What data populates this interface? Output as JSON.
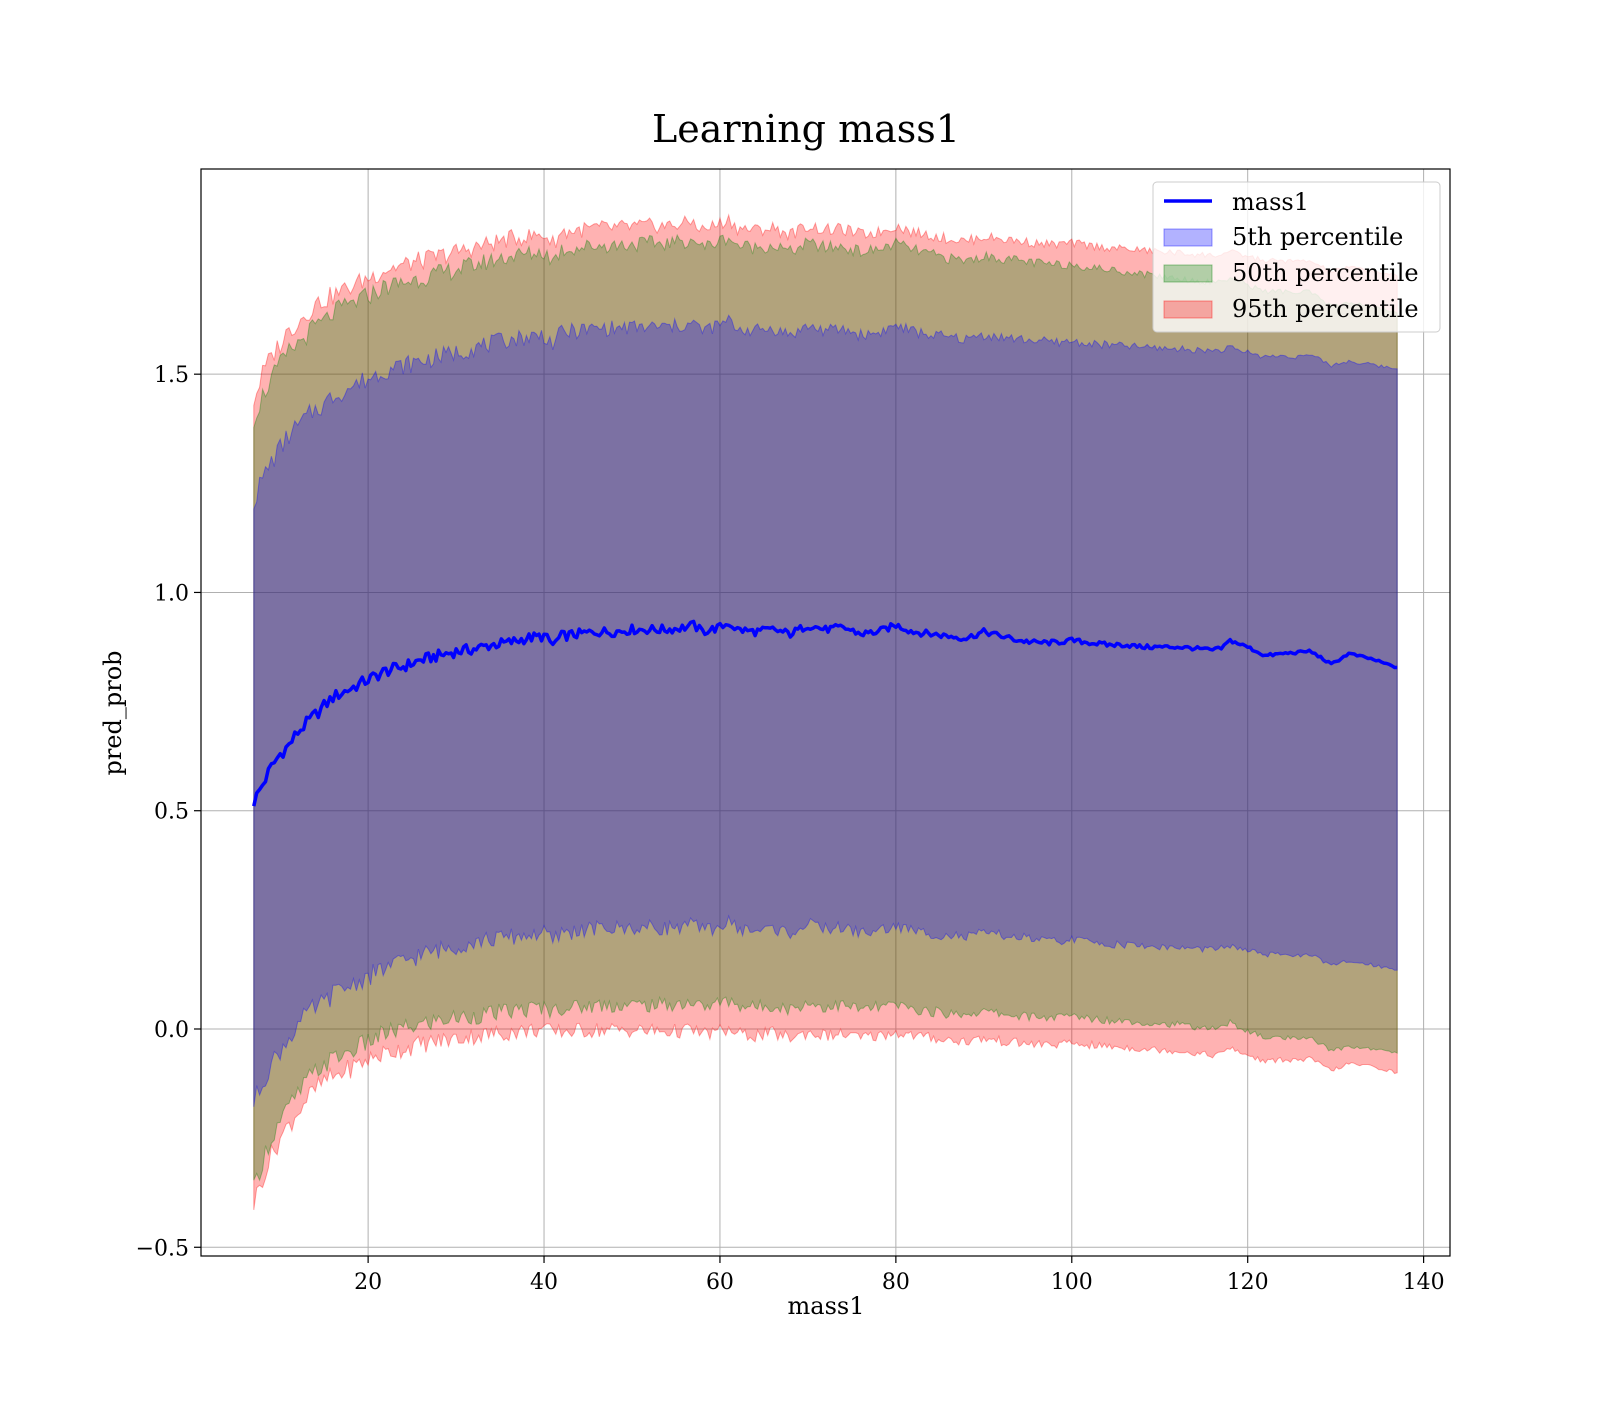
{
  "chart_data": {
    "type": "area",
    "title": "Learning mass1",
    "xlabel": "mass1",
    "ylabel": "pred_prob",
    "xlim": [
      1,
      143
    ],
    "ylim": [
      -0.52,
      1.97
    ],
    "x_ticks": [
      20,
      40,
      60,
      80,
      100,
      120,
      140
    ],
    "x_tick_labels": [
      "20",
      "40",
      "60",
      "80",
      "100",
      "120",
      "140"
    ],
    "y_ticks": [
      -0.5,
      0.0,
      0.5,
      1.0,
      1.5
    ],
    "y_tick_labels": [
      "−0.5",
      "0.0",
      "0.5",
      "1.0",
      "1.5"
    ],
    "grid": true,
    "legend_position": "top-right",
    "legend": [
      {
        "label": "mass1",
        "kind": "line"
      },
      {
        "label": "5th percentile",
        "kind": "patch"
      },
      {
        "label": "50th percentile",
        "kind": "patch"
      },
      {
        "label": "95th percentile",
        "kind": "patch"
      }
    ],
    "colors": {
      "line": "#0000ff",
      "band_5th": "#0000ff",
      "band_50th": "#008000",
      "band_95th": "#ff0000",
      "grid": "#b0b0b0"
    },
    "x": [
      7,
      8,
      9,
      10,
      11,
      12,
      13,
      14,
      15,
      16,
      17,
      18,
      19,
      20,
      22,
      24,
      26,
      28,
      30,
      32,
      34,
      36,
      38,
      40,
      41,
      42,
      44,
      46,
      48,
      50,
      52,
      54,
      56,
      57,
      58,
      60,
      61,
      62,
      64,
      66,
      68,
      70,
      72,
      74,
      76,
      78,
      80,
      82,
      84,
      86,
      88,
      90,
      92,
      94,
      96,
      98,
      100,
      102,
      104,
      106,
      108,
      110,
      112,
      114,
      116,
      117,
      118,
      120,
      122,
      124,
      126,
      127,
      128,
      129.5,
      131.5,
      134,
      137
    ],
    "series": [
      {
        "name": "mass1",
        "values": [
          0.52,
          0.56,
          0.6,
          0.63,
          0.65,
          0.68,
          0.7,
          0.72,
          0.74,
          0.76,
          0.77,
          0.78,
          0.79,
          0.8,
          0.82,
          0.83,
          0.845,
          0.855,
          0.865,
          0.87,
          0.88,
          0.885,
          0.895,
          0.9,
          0.88,
          0.9,
          0.905,
          0.91,
          0.91,
          0.915,
          0.915,
          0.915,
          0.92,
          0.925,
          0.91,
          0.92,
          0.93,
          0.915,
          0.91,
          0.915,
          0.905,
          0.925,
          0.915,
          0.92,
          0.905,
          0.91,
          0.925,
          0.91,
          0.905,
          0.9,
          0.895,
          0.91,
          0.9,
          0.89,
          0.885,
          0.885,
          0.89,
          0.885,
          0.88,
          0.88,
          0.875,
          0.875,
          0.875,
          0.872,
          0.868,
          0.872,
          0.89,
          0.875,
          0.855,
          0.86,
          0.863,
          0.866,
          0.855,
          0.835,
          0.86,
          0.848,
          0.828
        ]
      },
      {
        "name": "5th percentile",
        "values": [
          -0.17,
          -0.12,
          -0.08,
          -0.05,
          -0.02,
          0.01,
          0.03,
          0.05,
          0.06,
          0.08,
          0.09,
          0.1,
          0.11,
          0.12,
          0.14,
          0.155,
          0.17,
          0.18,
          0.19,
          0.2,
          0.205,
          0.21,
          0.215,
          0.22,
          0.2,
          0.22,
          0.225,
          0.23,
          0.23,
          0.232,
          0.232,
          0.232,
          0.235,
          0.24,
          0.225,
          0.235,
          0.245,
          0.23,
          0.225,
          0.23,
          0.22,
          0.24,
          0.23,
          0.232,
          0.22,
          0.225,
          0.235,
          0.225,
          0.218,
          0.215,
          0.21,
          0.22,
          0.215,
          0.21,
          0.205,
          0.2,
          0.205,
          0.2,
          0.195,
          0.193,
          0.19,
          0.188,
          0.186,
          0.184,
          0.182,
          0.185,
          0.19,
          0.18,
          0.17,
          0.17,
          0.17,
          0.172,
          0.16,
          0.145,
          0.155,
          0.148,
          0.135
        ]
      },
      {
        "name": "50th percentile",
        "values": [
          -0.37,
          -0.3,
          -0.25,
          -0.21,
          -0.18,
          -0.15,
          -0.12,
          -0.1,
          -0.08,
          -0.07,
          -0.06,
          -0.05,
          -0.04,
          -0.03,
          -0.01,
          0.0,
          0.01,
          0.02,
          0.025,
          0.03,
          0.035,
          0.04,
          0.045,
          0.05,
          0.04,
          0.05,
          0.05,
          0.055,
          0.055,
          0.055,
          0.055,
          0.055,
          0.06,
          0.06,
          0.05,
          0.06,
          0.065,
          0.055,
          0.05,
          0.055,
          0.045,
          0.06,
          0.05,
          0.055,
          0.045,
          0.05,
          0.055,
          0.045,
          0.04,
          0.035,
          0.035,
          0.04,
          0.035,
          0.03,
          0.028,
          0.026,
          0.03,
          0.025,
          0.02,
          0.02,
          0.015,
          0.012,
          0.01,
          0.005,
          0.0,
          0.005,
          0.015,
          -0.005,
          -0.02,
          -0.02,
          -0.025,
          -0.02,
          -0.03,
          -0.05,
          -0.04,
          -0.045,
          -0.055
        ]
      },
      {
        "name": "95th percentile",
        "values": [
          -0.4,
          -0.34,
          -0.29,
          -0.25,
          -0.22,
          -0.19,
          -0.16,
          -0.14,
          -0.12,
          -0.11,
          -0.1,
          -0.09,
          -0.08,
          -0.07,
          -0.055,
          -0.045,
          -0.035,
          -0.028,
          -0.022,
          -0.016,
          -0.012,
          -0.008,
          -0.004,
          0.0,
          -0.01,
          -0.005,
          -0.004,
          -0.002,
          -0.002,
          -0.003,
          -0.004,
          -0.006,
          -0.004,
          -0.002,
          -0.012,
          -0.005,
          -0.002,
          -0.012,
          -0.015,
          -0.01,
          -0.02,
          -0.008,
          -0.015,
          -0.012,
          -0.02,
          -0.015,
          -0.008,
          -0.015,
          -0.02,
          -0.025,
          -0.028,
          -0.022,
          -0.028,
          -0.032,
          -0.035,
          -0.036,
          -0.033,
          -0.037,
          -0.04,
          -0.042,
          -0.045,
          -0.048,
          -0.05,
          -0.055,
          -0.06,
          -0.055,
          -0.045,
          -0.06,
          -0.075,
          -0.07,
          -0.072,
          -0.068,
          -0.078,
          -0.095,
          -0.08,
          -0.085,
          -0.1
        ]
      }
    ],
    "bands": [
      {
        "name": "95th percentile",
        "lower": [
          -0.4,
          -0.34,
          -0.29,
          -0.25,
          -0.22,
          -0.19,
          -0.16,
          -0.14,
          -0.12,
          -0.11,
          -0.1,
          -0.09,
          -0.08,
          -0.07,
          -0.055,
          -0.045,
          -0.035,
          -0.028,
          -0.022,
          -0.016,
          -0.012,
          -0.008,
          -0.004,
          0.0,
          -0.01,
          -0.005,
          -0.004,
          -0.002,
          -0.002,
          -0.003,
          -0.004,
          -0.006,
          -0.004,
          -0.002,
          -0.012,
          -0.005,
          -0.002,
          -0.012,
          -0.015,
          -0.01,
          -0.02,
          -0.008,
          -0.015,
          -0.012,
          -0.02,
          -0.015,
          -0.008,
          -0.015,
          -0.02,
          -0.025,
          -0.028,
          -0.022,
          -0.028,
          -0.032,
          -0.035,
          -0.036,
          -0.033,
          -0.037,
          -0.04,
          -0.042,
          -0.045,
          -0.048,
          -0.05,
          -0.055,
          -0.06,
          -0.055,
          -0.045,
          -0.06,
          -0.075,
          -0.07,
          -0.072,
          -0.068,
          -0.078,
          -0.095,
          -0.08,
          -0.085,
          -0.1
        ],
        "upper": [
          1.44,
          1.5,
          1.54,
          1.57,
          1.6,
          1.62,
          1.64,
          1.66,
          1.67,
          1.68,
          1.69,
          1.7,
          1.71,
          1.72,
          1.74,
          1.75,
          1.76,
          1.77,
          1.78,
          1.79,
          1.8,
          1.81,
          1.815,
          1.82,
          1.8,
          1.825,
          1.83,
          1.835,
          1.835,
          1.838,
          1.84,
          1.84,
          1.845,
          1.85,
          1.83,
          1.845,
          1.855,
          1.835,
          1.83,
          1.835,
          1.82,
          1.84,
          1.83,
          1.832,
          1.82,
          1.825,
          1.84,
          1.825,
          1.818,
          1.81,
          1.805,
          1.815,
          1.81,
          1.805,
          1.8,
          1.797,
          1.8,
          1.795,
          1.79,
          1.787,
          1.784,
          1.781,
          1.778,
          1.775,
          1.772,
          1.775,
          1.78,
          1.77,
          1.76,
          1.76,
          1.758,
          1.76,
          1.75,
          1.735,
          1.745,
          1.738,
          1.725
        ]
      },
      {
        "name": "50th percentile",
        "lower": [
          -0.37,
          -0.3,
          -0.25,
          -0.21,
          -0.18,
          -0.15,
          -0.12,
          -0.1,
          -0.08,
          -0.07,
          -0.06,
          -0.05,
          -0.04,
          -0.03,
          -0.01,
          0.0,
          0.01,
          0.02,
          0.025,
          0.03,
          0.035,
          0.04,
          0.045,
          0.05,
          0.04,
          0.05,
          0.05,
          0.055,
          0.055,
          0.055,
          0.055,
          0.055,
          0.06,
          0.06,
          0.05,
          0.06,
          0.065,
          0.055,
          0.05,
          0.055,
          0.045,
          0.06,
          0.05,
          0.055,
          0.045,
          0.05,
          0.055,
          0.045,
          0.04,
          0.035,
          0.035,
          0.04,
          0.035,
          0.03,
          0.028,
          0.026,
          0.03,
          0.025,
          0.02,
          0.02,
          0.015,
          0.012,
          0.01,
          0.005,
          0.0,
          0.005,
          0.015,
          -0.005,
          -0.02,
          -0.02,
          -0.025,
          -0.02,
          -0.03,
          -0.05,
          -0.04,
          -0.045,
          -0.055
        ],
        "upper": [
          1.4,
          1.45,
          1.49,
          1.52,
          1.55,
          1.57,
          1.59,
          1.61,
          1.62,
          1.64,
          1.65,
          1.66,
          1.67,
          1.68,
          1.7,
          1.71,
          1.72,
          1.73,
          1.74,
          1.75,
          1.76,
          1.77,
          1.775,
          1.78,
          1.76,
          1.785,
          1.79,
          1.795,
          1.795,
          1.798,
          1.8,
          1.8,
          1.805,
          1.81,
          1.79,
          1.805,
          1.815,
          1.795,
          1.79,
          1.795,
          1.78,
          1.8,
          1.79,
          1.792,
          1.78,
          1.785,
          1.8,
          1.785,
          1.775,
          1.765,
          1.76,
          1.77,
          1.765,
          1.76,
          1.755,
          1.75,
          1.752,
          1.745,
          1.74,
          1.735,
          1.73,
          1.725,
          1.72,
          1.715,
          1.71,
          1.715,
          1.72,
          1.705,
          1.69,
          1.69,
          1.685,
          1.69,
          1.675,
          1.655,
          1.665,
          1.655,
          1.64
        ]
      },
      {
        "name": "5th percentile",
        "lower": [
          -0.17,
          -0.12,
          -0.08,
          -0.05,
          -0.02,
          0.01,
          0.03,
          0.05,
          0.06,
          0.08,
          0.09,
          0.1,
          0.11,
          0.12,
          0.14,
          0.155,
          0.17,
          0.18,
          0.19,
          0.2,
          0.205,
          0.21,
          0.215,
          0.22,
          0.2,
          0.22,
          0.225,
          0.23,
          0.23,
          0.232,
          0.232,
          0.232,
          0.235,
          0.24,
          0.225,
          0.235,
          0.245,
          0.23,
          0.225,
          0.23,
          0.22,
          0.24,
          0.23,
          0.232,
          0.22,
          0.225,
          0.235,
          0.225,
          0.218,
          0.215,
          0.21,
          0.22,
          0.215,
          0.21,
          0.205,
          0.2,
          0.205,
          0.2,
          0.195,
          0.193,
          0.19,
          0.188,
          0.186,
          0.184,
          0.182,
          0.185,
          0.19,
          0.18,
          0.17,
          0.17,
          0.17,
          0.172,
          0.16,
          0.145,
          0.155,
          0.148,
          0.135
        ],
        "upper": [
          1.21,
          1.26,
          1.3,
          1.33,
          1.36,
          1.38,
          1.4,
          1.42,
          1.43,
          1.45,
          1.46,
          1.47,
          1.48,
          1.49,
          1.51,
          1.52,
          1.53,
          1.54,
          1.55,
          1.56,
          1.57,
          1.58,
          1.585,
          1.59,
          1.57,
          1.595,
          1.6,
          1.605,
          1.605,
          1.607,
          1.608,
          1.608,
          1.612,
          1.616,
          1.6,
          1.613,
          1.622,
          1.605,
          1.6,
          1.605,
          1.59,
          1.61,
          1.6,
          1.603,
          1.59,
          1.595,
          1.612,
          1.598,
          1.59,
          1.585,
          1.58,
          1.59,
          1.585,
          1.58,
          1.577,
          1.573,
          1.575,
          1.57,
          1.567,
          1.565,
          1.562,
          1.56,
          1.558,
          1.556,
          1.554,
          1.556,
          1.56,
          1.55,
          1.54,
          1.542,
          1.54,
          1.545,
          1.535,
          1.52,
          1.53,
          1.522,
          1.512
        ]
      }
    ]
  }
}
